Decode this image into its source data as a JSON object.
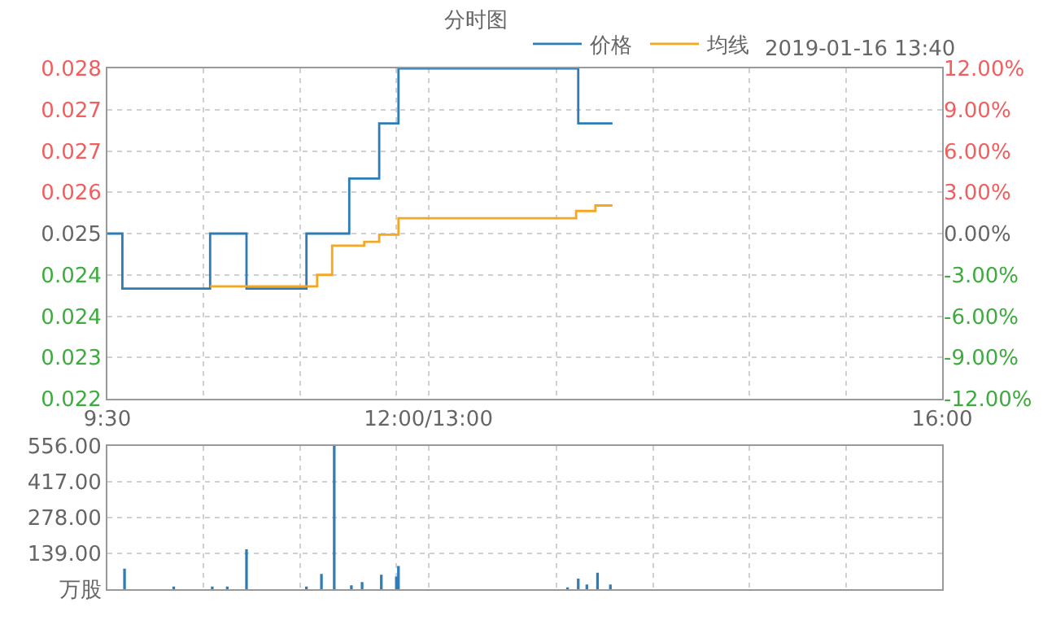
{
  "chart_data": [
    {
      "type": "step",
      "title": "分时图",
      "annotations": [
        "2019-01-16 13:40"
      ],
      "legend": "top",
      "grid": true,
      "xlim": [
        "2019-01-16T09:30",
        "2019-01-16T16:00"
      ],
      "xticks": [
        {
          "value": "2019-01-16T09:30",
          "label": "9:30"
        },
        {
          "value": "2019-01-16T10:15",
          "label": null
        },
        {
          "value": "2019-01-16T11:00",
          "label": null
        },
        {
          "value": "2019-01-16T11:45",
          "label": null
        },
        {
          "value": "2019-01-16T12:00",
          "label": "12:00/13:00"
        },
        {
          "value": "2019-01-16T13:00",
          "label": null
        },
        {
          "value": "2019-01-16T13:45",
          "label": null
        },
        {
          "value": "2019-01-16T14:30",
          "label": null
        },
        {
          "value": "2019-01-16T15:15",
          "label": null
        },
        {
          "value": "2019-01-16T16:00",
          "label": "16:00"
        }
      ],
      "ylim": [
        0.022,
        0.028
      ],
      "yticks": [
        {
          "value": 0.022,
          "label": "0.022"
        },
        {
          "value": 0.02275,
          "label": "0.023"
        },
        {
          "value": 0.0235,
          "label": "0.024"
        },
        {
          "value": 0.02425,
          "label": "0.024"
        },
        {
          "value": 0.025,
          "label": "0.025"
        },
        {
          "value": 0.02575,
          "label": "0.026"
        },
        {
          "value": 0.0265,
          "label": "0.027"
        },
        {
          "value": 0.02725,
          "label": "0.027"
        },
        {
          "value": 0.028,
          "label": "0.028"
        }
      ],
      "y2lim": [
        -12,
        12
      ],
      "y2ticks": [
        {
          "value": -12,
          "label": "-12.00%"
        },
        {
          "value": -9,
          "label": "-9.00%"
        },
        {
          "value": -6,
          "label": "-6.00%"
        },
        {
          "value": -3,
          "label": "-3.00%"
        },
        {
          "value": 0,
          "label": "0.00%"
        },
        {
          "value": 3,
          "label": "3.00%"
        },
        {
          "value": 6,
          "label": "6.00%"
        },
        {
          "value": 9,
          "label": "9.00%"
        },
        {
          "value": 12,
          "label": "12.00%"
        }
      ],
      "series": [
        {
          "name": "价格",
          "color": "#2e7cb6",
          "x": [
            "2019-01-16T09:30",
            "2019-01-16T09:37",
            "2019-01-16T10:18",
            "2019-01-16T10:35",
            "2019-01-16T11:03",
            "2019-01-16T11:23",
            "2019-01-16T11:37",
            "2019-01-16T11:46",
            "2019-01-16T13:10",
            "2019-01-16T13:26"
          ],
          "values": [
            0.025,
            0.024,
            0.025,
            0.024,
            0.025,
            0.026,
            0.027,
            0.028,
            0.027,
            0.027
          ]
        },
        {
          "name": "均线",
          "color": "#f5a623",
          "x": [
            "2019-01-16T10:18",
            "2019-01-16T11:08",
            "2019-01-16T11:15",
            "2019-01-16T11:30",
            "2019-01-16T11:37",
            "2019-01-16T11:46",
            "2019-01-16T13:09",
            "2019-01-16T13:18",
            "2019-01-16T13:26"
          ],
          "values": [
            0.02404,
            0.02425,
            0.02478,
            0.02485,
            0.02498,
            0.02528,
            0.02541,
            0.02551,
            0.02551
          ]
        }
      ]
    },
    {
      "type": "bar",
      "grid": true,
      "tick_labels": "y",
      "color": "#2e7cb6",
      "xlim": [
        "2019-01-16T09:30",
        "2019-01-16T16:00"
      ],
      "ylim": [
        0,
        556
      ],
      "yticks": [
        {
          "value": 0,
          "label": "万股"
        },
        {
          "value": 139,
          "label": "139.00"
        },
        {
          "value": 278,
          "label": "278.00"
        },
        {
          "value": 417,
          "label": "417.00"
        },
        {
          "value": 556,
          "label": "556.00"
        }
      ],
      "x": [
        "2019-01-16T09:38",
        "2019-01-16T10:01",
        "2019-01-16T10:19",
        "2019-01-16T10:26",
        "2019-01-16T10:35",
        "2019-01-16T11:03",
        "2019-01-16T11:10",
        "2019-01-16T11:16",
        "2019-01-16T11:24",
        "2019-01-16T11:29",
        "2019-01-16T11:38",
        "2019-01-16T11:45",
        "2019-01-16T11:46",
        "2019-01-16T13:05",
        "2019-01-16T13:10",
        "2019-01-16T13:14",
        "2019-01-16T13:19",
        "2019-01-16T13:25"
      ],
      "values": [
        78,
        8,
        8,
        8,
        153,
        8,
        57,
        556,
        13,
        26,
        54,
        47,
        88,
        5,
        39,
        16,
        62,
        16
      ]
    }
  ]
}
